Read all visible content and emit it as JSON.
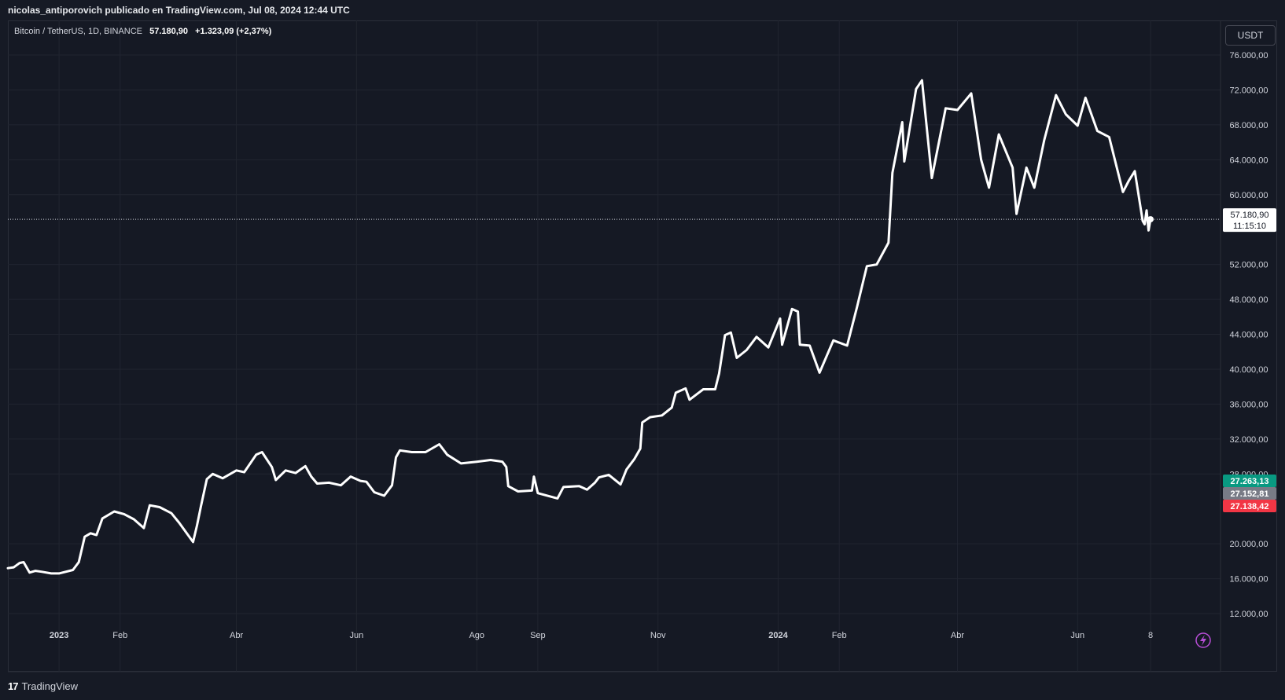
{
  "header": {
    "credit": "nicolas_antiporovich publicado en TradingView.com, Jul 08, 2024 12:44 UTC"
  },
  "legend": {
    "symbol": "Bitcoin / TetherUS, 1D, BINANCE",
    "price": "57.180,90",
    "change": "+1.323,09 (+2,37%)"
  },
  "toolbar": {
    "currency": "USDT"
  },
  "footer": {
    "logo_mark": "17",
    "logo_text": "TradingView"
  },
  "colors": {
    "background": "#151924",
    "grid": "#212530",
    "line": "#ffffff",
    "green": "#089981",
    "gray": "#787b86",
    "red": "#f23645",
    "accent": "#b74ed6"
  },
  "chart_data": {
    "type": "line",
    "title": "Bitcoin / TetherUS, 1D, BINANCE",
    "xlabel": "",
    "ylabel": "",
    "ylim": [
      10000,
      78000
    ],
    "x_range": [
      "2022-12-06",
      "2024-07-10"
    ],
    "grid": true,
    "legend": "top-left",
    "y_ticks": [
      {
        "v": 76000,
        "label": "76.000,00"
      },
      {
        "v": 72000,
        "label": "72.000,00"
      },
      {
        "v": 68000,
        "label": "68.000,00"
      },
      {
        "v": 64000,
        "label": "64.000,00"
      },
      {
        "v": 60000,
        "label": "60.000,00"
      },
      {
        "v": 52000,
        "label": "52.000,00"
      },
      {
        "v": 48000,
        "label": "48.000,00"
      },
      {
        "v": 44000,
        "label": "44.000,00"
      },
      {
        "v": 40000,
        "label": "40.000,00"
      },
      {
        "v": 36000,
        "label": "36.000,00"
      },
      {
        "v": 32000,
        "label": "32.000,00"
      },
      {
        "v": 28000,
        "label": "28.000,00"
      },
      {
        "v": 20000,
        "label": "20.000,00"
      },
      {
        "v": 16000,
        "label": "16.000,00"
      },
      {
        "v": 12000,
        "label": "12.000,00"
      }
    ],
    "x_ticks": [
      {
        "date": "2023-01-01",
        "label": "2023",
        "bold": true
      },
      {
        "date": "2023-02-01",
        "label": "Feb"
      },
      {
        "date": "2023-04-01",
        "label": "Abr"
      },
      {
        "date": "2023-06-01",
        "label": "Jun"
      },
      {
        "date": "2023-08-01",
        "label": "Ago"
      },
      {
        "date": "2023-09-01",
        "label": "Sep"
      },
      {
        "date": "2023-11-01",
        "label": "Nov"
      },
      {
        "date": "2024-01-01",
        "label": "2024",
        "bold": true
      },
      {
        "date": "2024-02-01",
        "label": "Feb"
      },
      {
        "date": "2024-04-01",
        "label": "Abr"
      },
      {
        "date": "2024-06-01",
        "label": "Jun"
      },
      {
        "date": "2024-07-08",
        "label": "8"
      }
    ],
    "last_price": {
      "value": 57180.9,
      "label": "57.180,90",
      "countdown": "11:15:10"
    },
    "price_tags": [
      {
        "value": 27263.13,
        "label": "27.263,13",
        "color": "#089981"
      },
      {
        "value": 27152.81,
        "label": "27.152,81",
        "color": "#787b86"
      },
      {
        "value": 27138.42,
        "label": "27.138,42",
        "color": "#f23645"
      }
    ],
    "series": [
      {
        "values": [
          {
            "x": "2022-12-06",
            "y": 17200
          },
          {
            "x": "2022-12-09",
            "y": 17300
          },
          {
            "x": "2022-12-12",
            "y": 17800
          },
          {
            "x": "2022-12-14",
            "y": 17900
          },
          {
            "x": "2022-12-17",
            "y": 16700
          },
          {
            "x": "2022-12-20",
            "y": 16900
          },
          {
            "x": "2022-12-23",
            "y": 16800
          },
          {
            "x": "2022-12-28",
            "y": 16600
          },
          {
            "x": "2023-01-01",
            "y": 16600
          },
          {
            "x": "2023-01-08",
            "y": 17000
          },
          {
            "x": "2023-01-11",
            "y": 17900
          },
          {
            "x": "2023-01-14",
            "y": 20800
          },
          {
            "x": "2023-01-17",
            "y": 21200
          },
          {
            "x": "2023-01-20",
            "y": 21000
          },
          {
            "x": "2023-01-23",
            "y": 22900
          },
          {
            "x": "2023-01-29",
            "y": 23700
          },
          {
            "x": "2023-02-03",
            "y": 23400
          },
          {
            "x": "2023-02-08",
            "y": 22800
          },
          {
            "x": "2023-02-13",
            "y": 21800
          },
          {
            "x": "2023-02-16",
            "y": 24400
          },
          {
            "x": "2023-02-21",
            "y": 24200
          },
          {
            "x": "2023-02-27",
            "y": 23500
          },
          {
            "x": "2023-03-03",
            "y": 22400
          },
          {
            "x": "2023-03-10",
            "y": 20200
          },
          {
            "x": "2023-03-12",
            "y": 22100
          },
          {
            "x": "2023-03-14",
            "y": 24300
          },
          {
            "x": "2023-03-17",
            "y": 27400
          },
          {
            "x": "2023-03-20",
            "y": 28000
          },
          {
            "x": "2023-03-25",
            "y": 27500
          },
          {
            "x": "2023-04-01",
            "y": 28400
          },
          {
            "x": "2023-04-05",
            "y": 28200
          },
          {
            "x": "2023-04-11",
            "y": 30200
          },
          {
            "x": "2023-04-14",
            "y": 30500
          },
          {
            "x": "2023-04-19",
            "y": 28800
          },
          {
            "x": "2023-04-21",
            "y": 27300
          },
          {
            "x": "2023-04-26",
            "y": 28400
          },
          {
            "x": "2023-05-01",
            "y": 28100
          },
          {
            "x": "2023-05-06",
            "y": 28900
          },
          {
            "x": "2023-05-09",
            "y": 27700
          },
          {
            "x": "2023-05-12",
            "y": 26900
          },
          {
            "x": "2023-05-18",
            "y": 27000
          },
          {
            "x": "2023-05-24",
            "y": 26700
          },
          {
            "x": "2023-05-29",
            "y": 27700
          },
          {
            "x": "2023-06-03",
            "y": 27200
          },
          {
            "x": "2023-06-06",
            "y": 27100
          },
          {
            "x": "2023-06-10",
            "y": 25900
          },
          {
            "x": "2023-06-15",
            "y": 25500
          },
          {
            "x": "2023-06-19",
            "y": 26700
          },
          {
            "x": "2023-06-21",
            "y": 29900
          },
          {
            "x": "2023-06-23",
            "y": 30700
          },
          {
            "x": "2023-06-29",
            "y": 30500
          },
          {
            "x": "2023-07-06",
            "y": 30500
          },
          {
            "x": "2023-07-13",
            "y": 31400
          },
          {
            "x": "2023-07-17",
            "y": 30200
          },
          {
            "x": "2023-07-24",
            "y": 29200
          },
          {
            "x": "2023-08-01",
            "y": 29400
          },
          {
            "x": "2023-08-08",
            "y": 29600
          },
          {
            "x": "2023-08-14",
            "y": 29400
          },
          {
            "x": "2023-08-16",
            "y": 28800
          },
          {
            "x": "2023-08-17",
            "y": 26600
          },
          {
            "x": "2023-08-22",
            "y": 26000
          },
          {
            "x": "2023-08-29",
            "y": 26100
          },
          {
            "x": "2023-08-30",
            "y": 27700
          },
          {
            "x": "2023-09-01",
            "y": 25800
          },
          {
            "x": "2023-09-11",
            "y": 25200
          },
          {
            "x": "2023-09-14",
            "y": 26500
          },
          {
            "x": "2023-09-22",
            "y": 26600
          },
          {
            "x": "2023-09-26",
            "y": 26200
          },
          {
            "x": "2023-09-30",
            "y": 27000
          },
          {
            "x": "2023-10-02",
            "y": 27600
          },
          {
            "x": "2023-10-07",
            "y": 27900
          },
          {
            "x": "2023-10-13",
            "y": 26800
          },
          {
            "x": "2023-10-16",
            "y": 28500
          },
          {
            "x": "2023-10-20",
            "y": 29700
          },
          {
            "x": "2023-10-23",
            "y": 30900
          },
          {
            "x": "2023-10-24",
            "y": 33900
          },
          {
            "x": "2023-10-28",
            "y": 34500
          },
          {
            "x": "2023-11-03",
            "y": 34700
          },
          {
            "x": "2023-11-08",
            "y": 35600
          },
          {
            "x": "2023-11-10",
            "y": 37300
          },
          {
            "x": "2023-11-15",
            "y": 37800
          },
          {
            "x": "2023-11-17",
            "y": 36500
          },
          {
            "x": "2023-11-24",
            "y": 37700
          },
          {
            "x": "2023-11-30",
            "y": 37700
          },
          {
            "x": "2023-12-02",
            "y": 39500
          },
          {
            "x": "2023-12-05",
            "y": 43900
          },
          {
            "x": "2023-12-08",
            "y": 44200
          },
          {
            "x": "2023-12-11",
            "y": 41300
          },
          {
            "x": "2023-12-16",
            "y": 42200
          },
          {
            "x": "2023-12-21",
            "y": 43700
          },
          {
            "x": "2023-12-27",
            "y": 42500
          },
          {
            "x": "2024-01-02",
            "y": 45800
          },
          {
            "x": "2024-01-03",
            "y": 42800
          },
          {
            "x": "2024-01-08",
            "y": 46900
          },
          {
            "x": "2024-01-11",
            "y": 46600
          },
          {
            "x": "2024-01-12",
            "y": 42800
          },
          {
            "x": "2024-01-17",
            "y": 42700
          },
          {
            "x": "2024-01-22",
            "y": 39600
          },
          {
            "x": "2024-01-29",
            "y": 43300
          },
          {
            "x": "2024-02-05",
            "y": 42700
          },
          {
            "x": "2024-02-10",
            "y": 47100
          },
          {
            "x": "2024-02-15",
            "y": 51800
          },
          {
            "x": "2024-02-20",
            "y": 52000
          },
          {
            "x": "2024-02-26",
            "y": 54500
          },
          {
            "x": "2024-02-28",
            "y": 62500
          },
          {
            "x": "2024-03-04",
            "y": 68300
          },
          {
            "x": "2024-03-05",
            "y": 63800
          },
          {
            "x": "2024-03-11",
            "y": 72100
          },
          {
            "x": "2024-03-14",
            "y": 73100
          },
          {
            "x": "2024-03-19",
            "y": 61900
          },
          {
            "x": "2024-03-26",
            "y": 69900
          },
          {
            "x": "2024-04-01",
            "y": 69700
          },
          {
            "x": "2024-04-08",
            "y": 71600
          },
          {
            "x": "2024-04-13",
            "y": 64000
          },
          {
            "x": "2024-04-17",
            "y": 60800
          },
          {
            "x": "2024-04-22",
            "y": 66900
          },
          {
            "x": "2024-04-29",
            "y": 63100
          },
          {
            "x": "2024-05-01",
            "y": 57800
          },
          {
            "x": "2024-05-06",
            "y": 63100
          },
          {
            "x": "2024-05-10",
            "y": 60800
          },
          {
            "x": "2024-05-15",
            "y": 66200
          },
          {
            "x": "2024-05-21",
            "y": 71400
          },
          {
            "x": "2024-05-26",
            "y": 69200
          },
          {
            "x": "2024-06-01",
            "y": 67900
          },
          {
            "x": "2024-06-05",
            "y": 71100
          },
          {
            "x": "2024-06-11",
            "y": 67300
          },
          {
            "x": "2024-06-17",
            "y": 66600
          },
          {
            "x": "2024-06-24",
            "y": 60300
          },
          {
            "x": "2024-06-27",
            "y": 61600
          },
          {
            "x": "2024-06-30",
            "y": 62700
          },
          {
            "x": "2024-07-04",
            "y": 57000
          },
          {
            "x": "2024-07-05",
            "y": 56600
          },
          {
            "x": "2024-07-06",
            "y": 58200
          },
          {
            "x": "2024-07-07",
            "y": 55900
          },
          {
            "x": "2024-07-08",
            "y": 57180.9
          }
        ]
      }
    ]
  }
}
